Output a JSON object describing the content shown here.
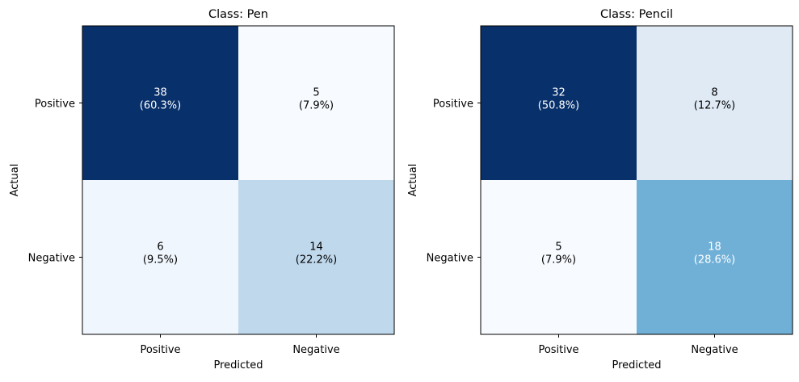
{
  "chart_data": [
    {
      "type": "heatmap",
      "title": "Class: Pen",
      "xlabel": "Predicted",
      "ylabel": "Actual",
      "x_ticks": [
        "Positive",
        "Negative"
      ],
      "y_ticks": [
        "Positive",
        "Negative"
      ],
      "colormap": "Blues",
      "values": [
        [
          38,
          5
        ],
        [
          6,
          14
        ]
      ],
      "cell_labels": [
        [
          "38\n(60.3%)",
          "5\n(7.9%)"
        ],
        [
          "6\n(9.5%)",
          "14\n(22.2%)"
        ]
      ],
      "colors": [
        [
          "#08306b",
          "#f7fbff"
        ],
        [
          "#f0f6fd",
          "#c0d8ec"
        ]
      ],
      "text_colors": [
        [
          "#ffffff",
          "#000000"
        ],
        [
          "#000000",
          "#000000"
        ]
      ]
    },
    {
      "type": "heatmap",
      "title": "Class: Pencil",
      "xlabel": "Predicted",
      "ylabel": "Actual",
      "x_ticks": [
        "Positive",
        "Negative"
      ],
      "y_ticks": [
        "Positive",
        "Negative"
      ],
      "colormap": "Blues",
      "values": [
        [
          32,
          8
        ],
        [
          5,
          18
        ]
      ],
      "cell_labels": [
        [
          "32\n(50.8%)",
          "8\n(12.7%)"
        ],
        [
          "5\n(7.9%)",
          "18\n(28.6%)"
        ]
      ],
      "colors": [
        [
          "#08306b",
          "#dfeaf5"
        ],
        [
          "#f7fbff",
          "#70b0d7"
        ]
      ],
      "text_colors": [
        [
          "#ffffff",
          "#000000"
        ],
        [
          "#000000",
          "#ffffff"
        ]
      ]
    }
  ]
}
